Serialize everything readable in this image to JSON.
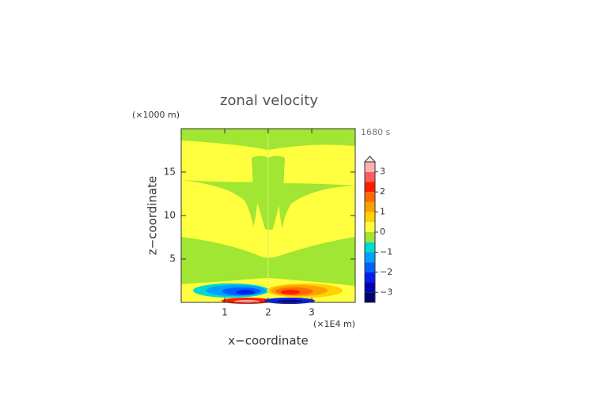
{
  "chart_data": {
    "type": "contour",
    "title": "zonal velocity",
    "xlabel": "x−coordinate",
    "ylabel": "z−coordinate",
    "x_unit": "(×1E4 m)",
    "y_unit": "(×1000 m)",
    "time_label": "1680 s",
    "xlim": [
      0,
      4
    ],
    "ylim": [
      0,
      20
    ],
    "xticks": [
      1,
      2,
      3
    ],
    "yticks": [
      5,
      10,
      15
    ],
    "levels": [
      -3.5,
      -3,
      -2.5,
      -2,
      -1.5,
      -1,
      -0.5,
      0,
      0.5,
      1,
      1.5,
      2,
      2.5,
      3,
      3.5
    ],
    "colors": [
      "#000070",
      "#0000b0",
      "#0020f0",
      "#0060ff",
      "#00a0ff",
      "#00d8d0",
      "#a0e632",
      "#ffff40",
      "#ffd200",
      "#ffa000",
      "#ff6a00",
      "#ff1e00",
      "#ff5c5c",
      "#ffb0b0"
    ],
    "over_color": "#ffe6e6",
    "colorbar_ticks": [
      {
        "value": -3,
        "label": "−3"
      },
      {
        "value": -2,
        "label": "−2"
      },
      {
        "value": -1,
        "label": "−1"
      },
      0,
      1,
      2,
      3
    ]
  }
}
